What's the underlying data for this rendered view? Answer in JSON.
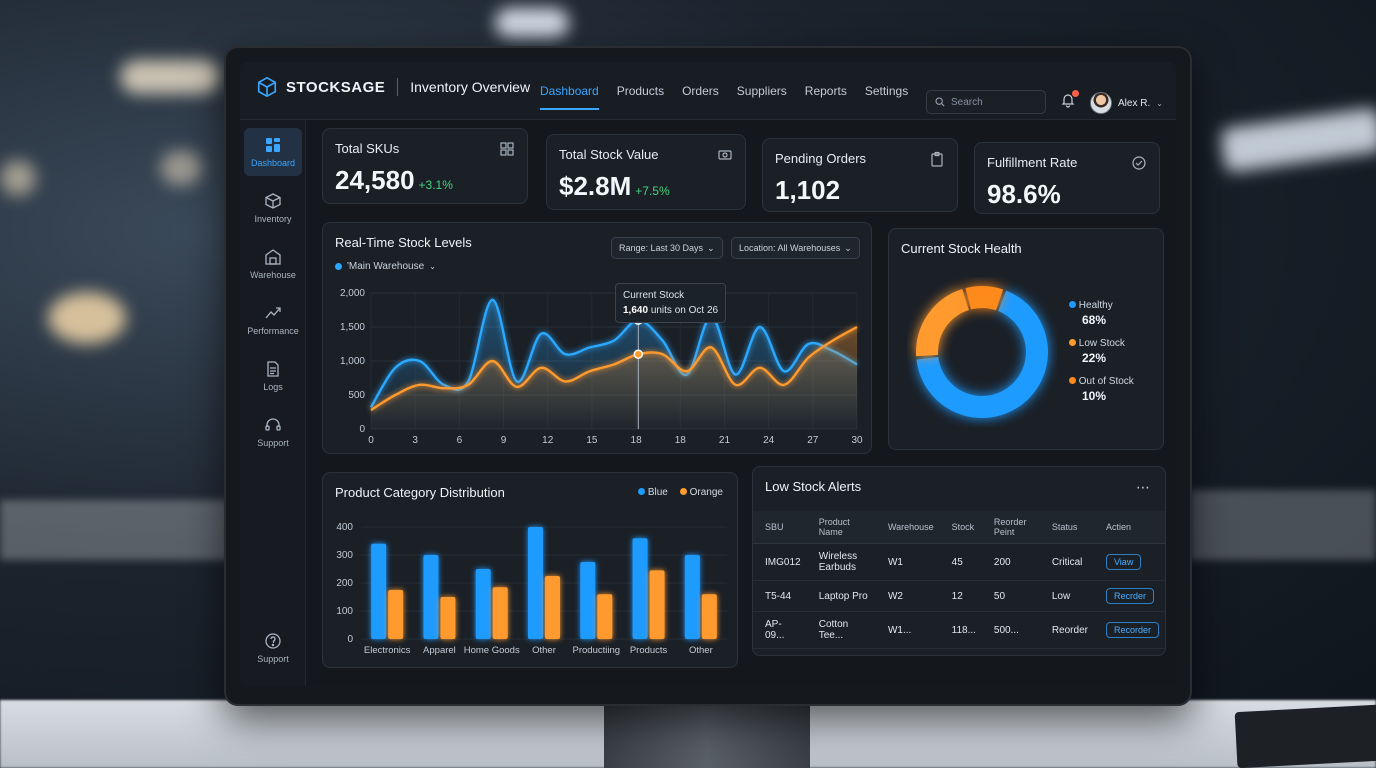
{
  "app": {
    "brand": "STOCKSAGE",
    "page_title": "Inventory Overview"
  },
  "nav": {
    "items": [
      "Dashboard",
      "Products",
      "Orders",
      "Suppliers",
      "Reports",
      "Settings"
    ],
    "active": "Dashboard"
  },
  "search": {
    "placeholder": "Search"
  },
  "user": {
    "name": "Alex R."
  },
  "sidebar": {
    "items": [
      {
        "label": "Dashboard",
        "icon": "grid-icon"
      },
      {
        "label": "Inventory",
        "icon": "box-icon"
      },
      {
        "label": "Warehouse",
        "icon": "warehouse-icon"
      },
      {
        "label": "Performance",
        "icon": "trend-icon"
      },
      {
        "label": "Logs",
        "icon": "document-icon"
      },
      {
        "label": "Support",
        "icon": "headset-icon"
      }
    ],
    "bottom": {
      "label": "Support",
      "icon": "help-icon"
    }
  },
  "kpis": [
    {
      "label": "Total SKUs",
      "value": "24,580",
      "delta": "+3.1%",
      "icon": "grid-icon"
    },
    {
      "label": "Total Stock Value",
      "value": "$2.8M",
      "delta": "+7.5%",
      "icon": "money-icon"
    },
    {
      "label": "Pending Orders",
      "value": "1,102",
      "delta": "",
      "icon": "clipboard-icon"
    },
    {
      "label": "Fulfillment Rate",
      "value": "98.6%",
      "delta": "",
      "icon": "check-circle-icon"
    }
  ],
  "stock_levels": {
    "title": "Real-Time Stock Levels",
    "range": "Range: Last 30 Days",
    "location": "Location: All Warehouses",
    "series_selector": "'Main Warehouse",
    "tooltip": {
      "title": "Current Stock",
      "value": "1,640",
      "suffix": "units on Oct 26"
    }
  },
  "stock_health": {
    "title": "Current Stock Health",
    "segments": [
      {
        "label": "Healthy",
        "pct": "68%",
        "value": 68,
        "color": "#1e9bff"
      },
      {
        "label": "Low Stock",
        "pct": "22%",
        "value": 22,
        "color": "#ff9a2e"
      },
      {
        "label": "Out of Stock",
        "pct": "10%",
        "value": 10,
        "color": "#ff8a1c"
      }
    ]
  },
  "category_dist": {
    "title": "Product Category Distribution",
    "legend": [
      "Blue",
      "Orange"
    ]
  },
  "alerts": {
    "title": "Low Stock Alerts",
    "columns": [
      "SBU",
      "Product Name",
      "Warehouse",
      "Stock",
      "Reorder Peint",
      "Status",
      "Actien"
    ],
    "rows": [
      {
        "sku": "IMG012",
        "name": "Wireless Earbuds",
        "wh": "W1",
        "stock": "45",
        "reorder": "200",
        "status": "Critical",
        "status_class": "st-critical",
        "action": "Viaw"
      },
      {
        "sku": "T5-44",
        "name": "Laptop Pro",
        "wh": "W2",
        "stock": "12",
        "reorder": "50",
        "status": "Low",
        "status_class": "st-low",
        "action": "Recrder"
      },
      {
        "sku": "AP-09...",
        "name": "Cotton Tee...",
        "wh": "W1...",
        "stock": "118...",
        "reorder": "500...",
        "status": "Reorder",
        "status_class": "st-reorder",
        "action": "Recorder"
      }
    ]
  },
  "chart_data": [
    {
      "type": "line",
      "title": "Real-Time Stock Levels",
      "x": [
        0,
        1.5,
        3,
        4.5,
        6,
        7.5,
        9,
        10.5,
        12,
        13.5,
        15,
        16.5,
        18,
        19.5,
        21,
        22.5,
        24,
        25.5,
        27,
        28.5,
        30
      ],
      "x_tick_labels": [
        "0",
        "3",
        "6",
        "9",
        "12",
        "15",
        "18",
        "18",
        "21",
        "24",
        "27",
        "30"
      ],
      "ylim": [
        0,
        2000
      ],
      "y_ticks": [
        "0",
        "500",
        "1,000",
        "1,500",
        "2,000"
      ],
      "series": [
        {
          "color": "#2ba8ff",
          "values": [
            320,
            900,
            1000,
            650,
            700,
            1900,
            700,
            1400,
            1100,
            1200,
            1300,
            1600,
            1300,
            800,
            1650,
            800,
            1500,
            850,
            1250,
            1150,
            950
          ]
        },
        {
          "color": "#ff9a2e",
          "values": [
            280,
            500,
            650,
            600,
            650,
            1000,
            620,
            900,
            700,
            850,
            950,
            1100,
            1100,
            850,
            1200,
            650,
            900,
            650,
            1050,
            1300,
            1500
          ]
        }
      ]
    },
    {
      "type": "pie",
      "title": "Current Stock Health",
      "categories": [
        "Healthy",
        "Low Stock",
        "Out of Stock"
      ],
      "values": [
        68,
        22,
        10
      ]
    },
    {
      "type": "bar",
      "title": "Product Category Distribution",
      "categories": [
        "Electronics",
        "Apparel",
        "Home Goods",
        "Other",
        "Productiing",
        "Products",
        "Other"
      ],
      "ylim": [
        0,
        400
      ],
      "y_ticks": [
        "0",
        "100",
        "200",
        "300",
        "400"
      ],
      "series": [
        {
          "name": "Blue",
          "color": "#1e9bff",
          "values": [
            340,
            300,
            250,
            400,
            275,
            360,
            300
          ]
        },
        {
          "name": "Orange",
          "color": "#ff9a2e",
          "values": [
            175,
            150,
            185,
            225,
            160,
            245,
            160
          ]
        }
      ]
    }
  ]
}
